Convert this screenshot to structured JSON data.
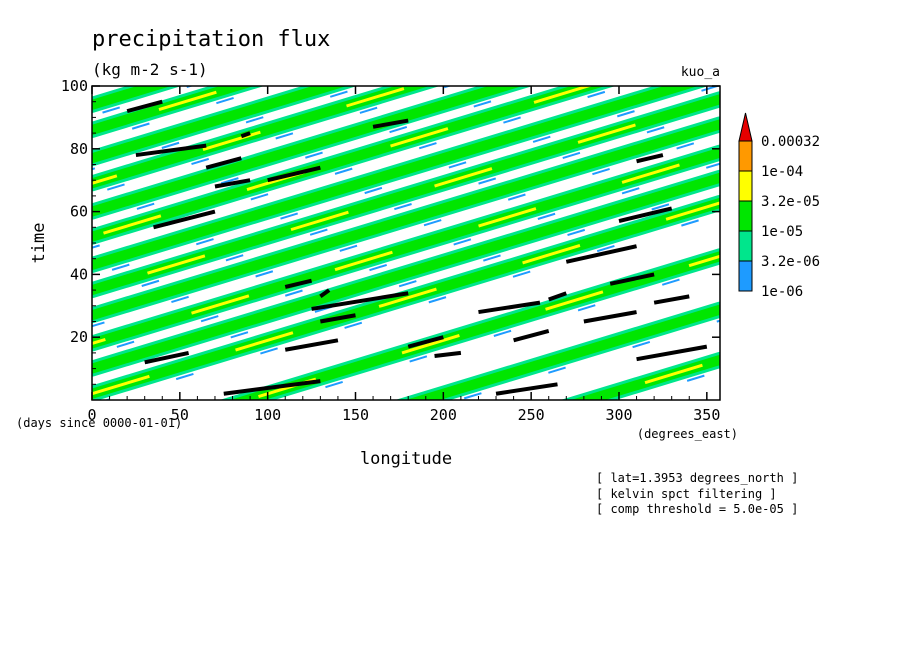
{
  "chart_data": {
    "type": "heatmap",
    "title": "precipitation flux",
    "subtitle": "(kg m-2 s-1)",
    "run_label": "kuo_a",
    "xlabel": "longitude",
    "ylabel": "time",
    "x_units": "(degrees_east)",
    "y_units": "(days since 0000-01-01)",
    "xlim": [
      0,
      357.5
    ],
    "ylim": [
      0,
      100
    ],
    "x_ticks": [
      0,
      50,
      100,
      150,
      200,
      250,
      300,
      350
    ],
    "y_ticks": [
      20,
      40,
      60,
      80,
      100
    ],
    "x_tick_labels": [
      "0",
      "50",
      "100",
      "150",
      "200",
      "250",
      "300",
      "350"
    ],
    "y_tick_labels": [
      "20",
      "40",
      "60",
      "80",
      "100"
    ],
    "colorbar": {
      "levels": [
        1e-06,
        3.2e-06,
        1e-05,
        3.2e-05,
        0.0001,
        0.00032
      ],
      "labels": [
        "1e-06",
        "3.2e-06",
        "1e-05",
        "3.2e-05",
        "1e-04",
        "0.00032"
      ],
      "colors": [
        "#1e9bff",
        "#00e68c",
        "#00e600",
        "#ffff00",
        "#ff9900",
        "#e60000"
      ]
    },
    "annotations": [
      "[ lat=1.3953 degrees_north ]",
      "[ kelvin spct filtering ]",
      "[ comp threshold = 5.0e-05 ]"
    ],
    "bands": [
      {
        "lon_start": 0,
        "time_start": 2,
        "slope": 0.17,
        "level": 3
      },
      {
        "lon_start": 0,
        "time_start": 10,
        "slope": 0.17,
        "level": 2
      },
      {
        "lon_start": 0,
        "time_start": 18,
        "slope": 0.17,
        "level": 3
      },
      {
        "lon_start": 0,
        "time_start": 27,
        "slope": 0.17,
        "level": 2
      },
      {
        "lon_start": 0,
        "time_start": 35,
        "slope": 0.17,
        "level": 3
      },
      {
        "lon_start": 0,
        "time_start": 43,
        "slope": 0.17,
        "level": 2
      },
      {
        "lon_start": 0,
        "time_start": 52,
        "slope": 0.17,
        "level": 3
      },
      {
        "lon_start": 0,
        "time_start": 60,
        "slope": 0.17,
        "level": 2
      },
      {
        "lon_start": 0,
        "time_start": 69,
        "slope": 0.17,
        "level": 3
      },
      {
        "lon_start": 0,
        "time_start": 77,
        "slope": 0.17,
        "level": 2
      },
      {
        "lon_start": 0,
        "time_start": 86,
        "slope": 0.17,
        "level": 3
      },
      {
        "lon_start": 0,
        "time_start": 94,
        "slope": 0.17,
        "level": 2
      },
      {
        "lon_start": 0,
        "time_start": -15,
        "slope": 0.17,
        "level": 3
      },
      {
        "lon_start": 0,
        "time_start": -32,
        "slope": 0.17,
        "level": 2
      },
      {
        "lon_start": 0,
        "time_start": -48,
        "slope": 0.17,
        "level": 3
      }
    ],
    "composites": [
      {
        "lon": [
          20,
          40
        ],
        "time": [
          92,
          95
        ]
      },
      {
        "lon": [
          25,
          65
        ],
        "time": [
          78,
          81
        ]
      },
      {
        "lon": [
          85,
          90
        ],
        "time": [
          84,
          85
        ]
      },
      {
        "lon": [
          65,
          85
        ],
        "time": [
          74,
          77
        ]
      },
      {
        "lon": [
          160,
          180
        ],
        "time": [
          87,
          89
        ]
      },
      {
        "lon": [
          70,
          90
        ],
        "time": [
          68,
          70
        ]
      },
      {
        "lon": [
          100,
          130
        ],
        "time": [
          70,
          74
        ]
      },
      {
        "lon": [
          35,
          70
        ],
        "time": [
          55,
          60
        ]
      },
      {
        "lon": [
          300,
          330
        ],
        "time": [
          57,
          61
        ]
      },
      {
        "lon": [
          310,
          325
        ],
        "time": [
          76,
          78
        ]
      },
      {
        "lon": [
          270,
          310
        ],
        "time": [
          44,
          49
        ]
      },
      {
        "lon": [
          110,
          125
        ],
        "time": [
          36,
          38
        ]
      },
      {
        "lon": [
          125,
          180
        ],
        "time": [
          29,
          34
        ]
      },
      {
        "lon": [
          130,
          135
        ],
        "time": [
          33,
          35
        ]
      },
      {
        "lon": [
          295,
          320
        ],
        "time": [
          37,
          40
        ]
      },
      {
        "lon": [
          130,
          150
        ],
        "time": [
          25,
          27
        ]
      },
      {
        "lon": [
          220,
          255
        ],
        "time": [
          28,
          31
        ]
      },
      {
        "lon": [
          260,
          270
        ],
        "time": [
          32,
          34
        ]
      },
      {
        "lon": [
          280,
          310
        ],
        "time": [
          25,
          28
        ]
      },
      {
        "lon": [
          320,
          340
        ],
        "time": [
          31,
          33
        ]
      },
      {
        "lon": [
          110,
          140
        ],
        "time": [
          16,
          19
        ]
      },
      {
        "lon": [
          180,
          200
        ],
        "time": [
          17,
          20
        ]
      },
      {
        "lon": [
          195,
          210
        ],
        "time": [
          14,
          15
        ]
      },
      {
        "lon": [
          240,
          260
        ],
        "time": [
          19,
          22
        ]
      },
      {
        "lon": [
          30,
          55
        ],
        "time": [
          12,
          15
        ]
      },
      {
        "lon": [
          310,
          350
        ],
        "time": [
          13,
          17
        ]
      },
      {
        "lon": [
          75,
          130
        ],
        "time": [
          2,
          6
        ]
      },
      {
        "lon": [
          230,
          265
        ],
        "time": [
          2,
          5
        ]
      }
    ]
  }
}
